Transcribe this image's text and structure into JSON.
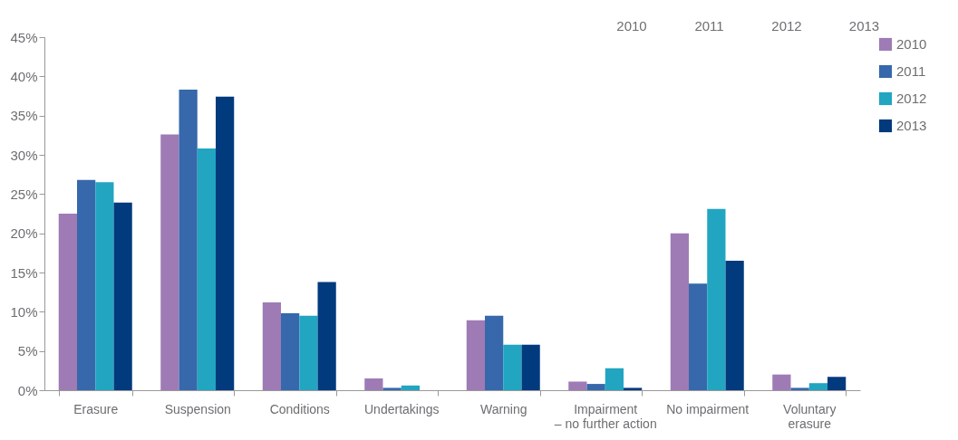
{
  "chart_data": {
    "type": "bar",
    "categories": [
      "Erasure",
      "Suspension",
      "Conditions",
      "Undertakings",
      "Warning",
      "Impairment\n– no further action",
      "No impairment",
      "Voluntary\nerasure"
    ],
    "series": [
      {
        "name": "2010",
        "color": "#9e7bb5",
        "values": [
          22.5,
          32.6,
          11.2,
          1.5,
          8.9,
          1.1,
          20.0,
          2.0
        ]
      },
      {
        "name": "2011",
        "color": "#3668ab",
        "values": [
          26.8,
          38.3,
          9.8,
          0.3,
          9.5,
          0.8,
          13.6,
          0.3
        ]
      },
      {
        "name": "2012",
        "color": "#22a5c1",
        "values": [
          26.5,
          30.8,
          9.5,
          0.6,
          5.8,
          2.8,
          23.1,
          0.9
        ]
      },
      {
        "name": "2013",
        "color": "#023a7e",
        "values": [
          23.9,
          37.4,
          13.8,
          0.0,
          5.8,
          0.3,
          16.5,
          1.7
        ]
      }
    ],
    "ylim": [
      0,
      45
    ],
    "yticks": [
      {
        "value": 0,
        "label": "0%"
      },
      {
        "value": 5,
        "label": "5%"
      },
      {
        "value": 10,
        "label": "10%"
      },
      {
        "value": 15,
        "label": "15%"
      },
      {
        "value": 20,
        "label": "20%"
      },
      {
        "value": 25,
        "label": "25%"
      },
      {
        "value": 30,
        "label": "30%"
      },
      {
        "value": 35,
        "label": "35%"
      },
      {
        "value": 40,
        "label": "40%"
      },
      {
        "value": 45,
        "label": "45%"
      }
    ],
    "grid": false,
    "legend": "right",
    "annotations": [
      "2010",
      "2011",
      "2012",
      "2013"
    ]
  }
}
